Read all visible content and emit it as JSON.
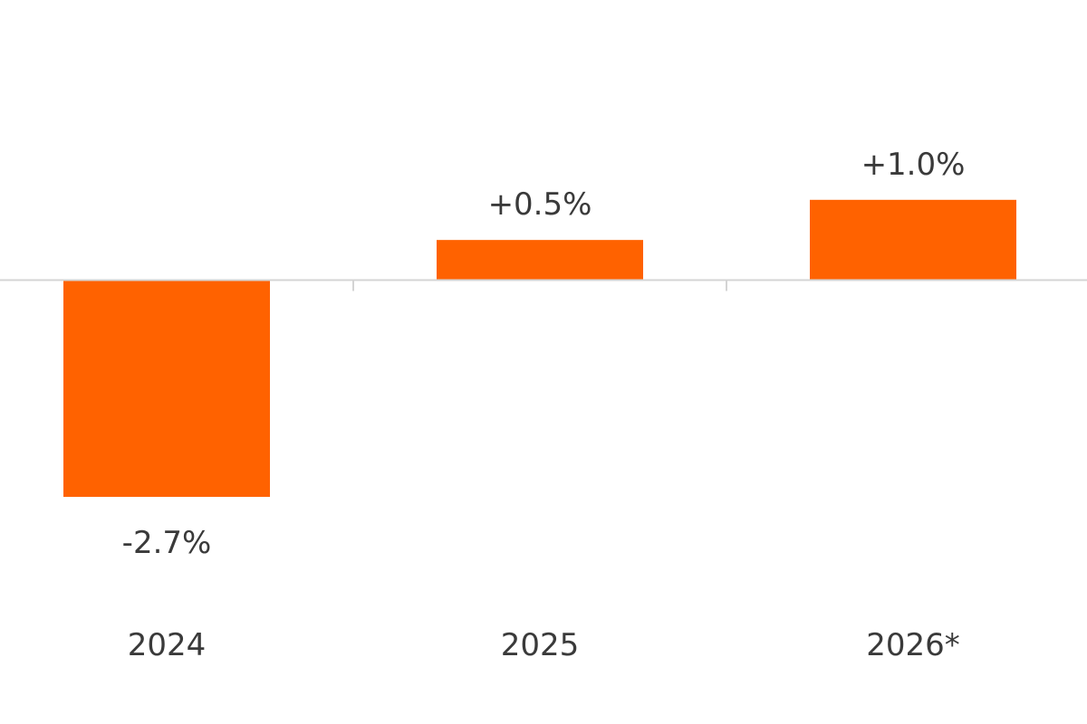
{
  "chart_data": {
    "type": "bar",
    "categories": [
      "2024",
      "2025",
      "2026*"
    ],
    "values": [
      -2.7,
      0.5,
      1.0
    ],
    "value_labels": [
      "-2.7%",
      "+0.5%",
      "+1.0%"
    ],
    "ylim": [
      -3.5,
      2.7
    ],
    "grid": false,
    "legend": "none",
    "colors": {
      "bar": "#ff6200",
      "axis": "#d4d4d4",
      "text": "#3a3a3a"
    }
  }
}
